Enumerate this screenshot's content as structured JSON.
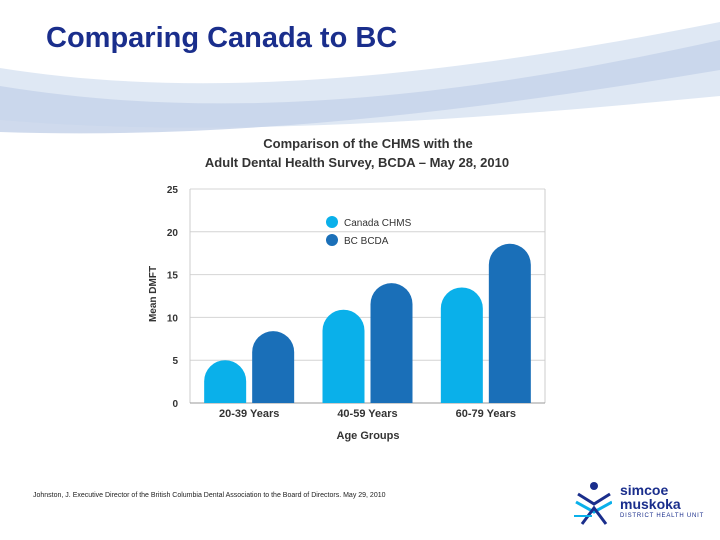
{
  "slide": {
    "title": "Comparing Canada to BC",
    "citation": "Johnston, J. Executive Director of the British Columbia Dental Association to the Board of Directors. May 29, 2010"
  },
  "logo": {
    "line1": "simcoe",
    "line2": "muskoka",
    "line3": "DISTRICT HEALTH UNIT",
    "icon": "person-figure-icon"
  },
  "colors": {
    "title": "#1a2e8c",
    "canada": "#0ab0ea",
    "bc": "#1a6fb8"
  },
  "chart_data": {
    "type": "bar",
    "title_line1": "Comparison of the CHMS with the",
    "title_line2": "Adult Dental Health Survey, BCDA – May 28, 2010",
    "xlabel": "Age Groups",
    "ylabel": "Mean DMFT",
    "categories": [
      "20-39 Years",
      "40-59 Years",
      "60-79 Years"
    ],
    "series": [
      {
        "name": "Canada CHMS",
        "values": [
          5.0,
          10.9,
          13.5
        ]
      },
      {
        "name": "BC BCDA",
        "values": [
          8.4,
          14.0,
          18.6
        ]
      }
    ],
    "ylim": [
      0,
      25
    ],
    "yticks": [
      0,
      5,
      10,
      15,
      20,
      25
    ],
    "grid": true,
    "legend_position": "top-center"
  }
}
